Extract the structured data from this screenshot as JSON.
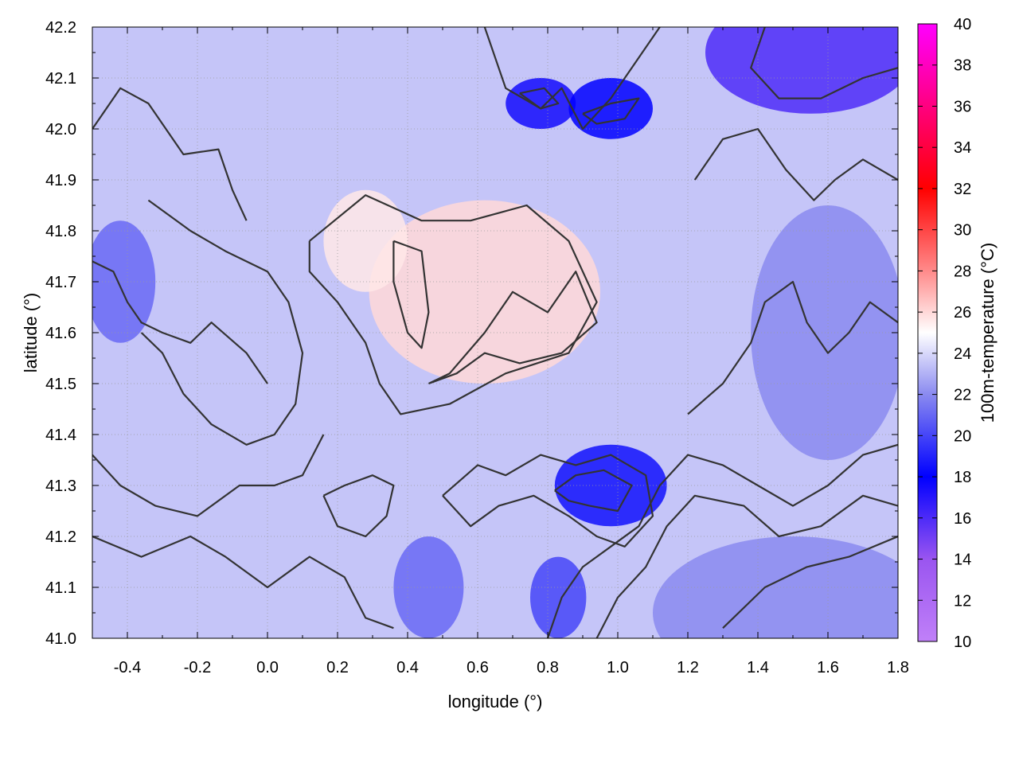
{
  "chart_data": {
    "type": "heatmap",
    "title": "",
    "xlabel": "longitude (°)",
    "ylabel": "latitude (°)",
    "colorbar_label": "100m-temperature (°C)",
    "xlim": [
      -0.5,
      1.8
    ],
    "ylim": [
      41.0,
      42.2
    ],
    "x_ticks": [
      "-0.4",
      "-0.2",
      "0.0",
      "0.2",
      "0.4",
      "0.6",
      "0.8",
      "1.0",
      "1.2",
      "1.4",
      "1.6",
      "1.8"
    ],
    "y_ticks": [
      "41.0",
      "41.1",
      "41.2",
      "41.3",
      "41.4",
      "41.5",
      "41.6",
      "41.7",
      "41.8",
      "41.9",
      "42.0",
      "42.1",
      "42.2"
    ],
    "colorbar_range": [
      10,
      40
    ],
    "colorbar_ticks": [
      "10",
      "12",
      "14",
      "16",
      "18",
      "20",
      "22",
      "24",
      "26",
      "28",
      "30",
      "32",
      "34",
      "36",
      "38",
      "40"
    ],
    "colormap": [
      {
        "value": 10,
        "color": "#c080f8"
      },
      {
        "value": 14,
        "color": "#9a55f0"
      },
      {
        "value": 18,
        "color": "#0000ff"
      },
      {
        "value": 22,
        "color": "#8a8af0"
      },
      {
        "value": 25,
        "color": "#ffffff"
      },
      {
        "value": 28,
        "color": "#ff8a8a"
      },
      {
        "value": 32,
        "color": "#ff0000"
      },
      {
        "value": 40,
        "color": "#ff00ff"
      }
    ],
    "contour_color": "#333333",
    "grid": true,
    "grid_style": "dotted",
    "regions": [
      {
        "name": "warm-center",
        "cx": 0.62,
        "cy": 41.68,
        "rx": 0.33,
        "ry": 0.18,
        "value": 26.0
      },
      {
        "name": "warm-west-center",
        "cx": 0.28,
        "cy": 41.78,
        "rx": 0.12,
        "ry": 0.1,
        "value": 25.6
      },
      {
        "name": "cold-northeast-corner",
        "cx": 1.55,
        "cy": 42.15,
        "rx": 0.3,
        "ry": 0.12,
        "value": 16.0
      },
      {
        "name": "cold-north-1",
        "cx": 0.78,
        "cy": 42.05,
        "rx": 0.1,
        "ry": 0.05,
        "value": 17.5
      },
      {
        "name": "cold-north-2",
        "cx": 0.98,
        "cy": 42.04,
        "rx": 0.12,
        "ry": 0.06,
        "value": 18.0
      },
      {
        "name": "cold-southeast-1",
        "cx": 0.98,
        "cy": 41.3,
        "rx": 0.16,
        "ry": 0.08,
        "value": 18.5
      },
      {
        "name": "cold-southeast-2",
        "cx": 0.83,
        "cy": 41.08,
        "rx": 0.08,
        "ry": 0.08,
        "value": 20.0
      },
      {
        "name": "cool-west",
        "cx": -0.42,
        "cy": 41.7,
        "rx": 0.1,
        "ry": 0.12,
        "value": 21.0
      },
      {
        "name": "cool-south-center",
        "cx": 0.46,
        "cy": 41.1,
        "rx": 0.1,
        "ry": 0.1,
        "value": 21.0
      },
      {
        "name": "cool-east",
        "cx": 1.6,
        "cy": 41.6,
        "rx": 0.22,
        "ry": 0.25,
        "value": 22.0
      },
      {
        "name": "flat-southeast",
        "cx": 1.5,
        "cy": 41.05,
        "rx": 0.4,
        "ry": 0.15,
        "value": 22.0
      }
    ],
    "contours": [
      [
        [
          0.12,
          41.78
        ],
        [
          0.28,
          41.87
        ],
        [
          0.44,
          41.82
        ],
        [
          0.58,
          41.82
        ],
        [
          0.74,
          41.85
        ],
        [
          0.86,
          41.78
        ],
        [
          0.94,
          41.66
        ],
        [
          0.86,
          41.56
        ],
        [
          0.68,
          41.52
        ],
        [
          0.52,
          41.46
        ],
        [
          0.38,
          41.44
        ],
        [
          0.32,
          41.5
        ],
        [
          0.28,
          41.58
        ],
        [
          0.2,
          41.66
        ],
        [
          0.12,
          41.72
        ],
        [
          0.12,
          41.78
        ]
      ],
      [
        [
          0.36,
          41.78
        ],
        [
          0.44,
          41.76
        ],
        [
          0.46,
          41.64
        ],
        [
          0.44,
          41.57
        ],
        [
          0.4,
          41.6
        ],
        [
          0.36,
          41.7
        ],
        [
          0.36,
          41.78
        ]
      ],
      [
        [
          0.46,
          41.5
        ],
        [
          0.52,
          41.52
        ],
        [
          0.62,
          41.6
        ],
        [
          0.7,
          41.68
        ],
        [
          0.8,
          41.64
        ],
        [
          0.88,
          41.72
        ],
        [
          0.94,
          41.62
        ],
        [
          0.84,
          41.56
        ],
        [
          0.72,
          41.54
        ],
        [
          0.62,
          41.56
        ],
        [
          0.54,
          41.52
        ],
        [
          0.46,
          41.5
        ]
      ],
      [
        [
          0.62,
          42.2
        ],
        [
          0.68,
          42.08
        ],
        [
          0.78,
          42.04
        ],
        [
          0.84,
          42.08
        ],
        [
          0.9,
          42.0
        ],
        [
          0.98,
          42.06
        ],
        [
          1.04,
          42.12
        ],
        [
          1.12,
          42.2
        ]
      ],
      [
        [
          0.72,
          42.07
        ],
        [
          0.78,
          42.04
        ],
        [
          0.83,
          42.05
        ],
        [
          0.79,
          42.08
        ],
        [
          0.72,
          42.07
        ]
      ],
      [
        [
          0.9,
          42.03
        ],
        [
          0.98,
          42.05
        ],
        [
          1.06,
          42.06
        ],
        [
          1.02,
          42.02
        ],
        [
          0.94,
          42.01
        ],
        [
          0.9,
          42.03
        ]
      ],
      [
        [
          1.42,
          42.2
        ],
        [
          1.38,
          42.12
        ],
        [
          1.46,
          42.06
        ],
        [
          1.58,
          42.06
        ],
        [
          1.7,
          42.1
        ],
        [
          1.8,
          42.12
        ]
      ],
      [
        [
          -0.5,
          42.0
        ],
        [
          -0.42,
          42.08
        ],
        [
          -0.34,
          42.05
        ],
        [
          -0.24,
          41.95
        ],
        [
          -0.14,
          41.96
        ],
        [
          -0.1,
          41.88
        ],
        [
          -0.06,
          41.82
        ]
      ],
      [
        [
          -0.5,
          41.74
        ],
        [
          -0.44,
          41.72
        ],
        [
          -0.4,
          41.66
        ],
        [
          -0.36,
          41.62
        ],
        [
          -0.3,
          41.6
        ],
        [
          -0.22,
          41.58
        ],
        [
          -0.16,
          41.62
        ],
        [
          -0.06,
          41.56
        ],
        [
          0.0,
          41.5
        ]
      ],
      [
        [
          -0.5,
          41.36
        ],
        [
          -0.42,
          41.3
        ],
        [
          -0.32,
          41.26
        ],
        [
          -0.2,
          41.24
        ],
        [
          -0.08,
          41.3
        ],
        [
          0.02,
          41.3
        ],
        [
          0.1,
          41.32
        ],
        [
          0.16,
          41.4
        ]
      ],
      [
        [
          -0.5,
          41.2
        ],
        [
          -0.36,
          41.16
        ],
        [
          -0.22,
          41.2
        ],
        [
          -0.12,
          41.16
        ],
        [
          0.0,
          41.1
        ],
        [
          0.12,
          41.16
        ],
        [
          0.22,
          41.12
        ],
        [
          0.28,
          41.04
        ],
        [
          0.36,
          41.02
        ]
      ],
      [
        [
          0.5,
          41.28
        ],
        [
          0.6,
          41.34
        ],
        [
          0.68,
          41.32
        ],
        [
          0.78,
          41.36
        ],
        [
          0.88,
          41.34
        ],
        [
          0.98,
          41.36
        ],
        [
          1.08,
          41.32
        ],
        [
          1.1,
          41.24
        ],
        [
          1.02,
          41.18
        ],
        [
          0.94,
          41.2
        ],
        [
          0.86,
          41.24
        ],
        [
          0.76,
          41.28
        ],
        [
          0.66,
          41.26
        ],
        [
          0.58,
          41.22
        ],
        [
          0.5,
          41.28
        ]
      ],
      [
        [
          0.82,
          41.29
        ],
        [
          0.88,
          41.32
        ],
        [
          0.96,
          41.33
        ],
        [
          1.04,
          41.3
        ],
        [
          1.0,
          41.25
        ],
        [
          0.92,
          41.26
        ],
        [
          0.86,
          41.27
        ],
        [
          0.82,
          41.29
        ]
      ],
      [
        [
          0.8,
          41.0
        ],
        [
          0.84,
          41.08
        ],
        [
          0.9,
          41.14
        ],
        [
          0.98,
          41.18
        ],
        [
          1.06,
          41.22
        ],
        [
          1.12,
          41.3
        ],
        [
          1.2,
          41.36
        ],
        [
          1.3,
          41.34
        ],
        [
          1.4,
          41.3
        ],
        [
          1.5,
          41.26
        ],
        [
          1.6,
          41.3
        ],
        [
          1.7,
          41.36
        ],
        [
          1.8,
          41.38
        ]
      ],
      [
        [
          0.94,
          41.0
        ],
        [
          1.0,
          41.08
        ],
        [
          1.08,
          41.14
        ],
        [
          1.14,
          41.22
        ],
        [
          1.22,
          41.28
        ],
        [
          1.36,
          41.26
        ],
        [
          1.46,
          41.2
        ],
        [
          1.58,
          41.22
        ],
        [
          1.7,
          41.28
        ],
        [
          1.8,
          41.26
        ]
      ],
      [
        [
          1.2,
          41.44
        ],
        [
          1.3,
          41.5
        ],
        [
          1.38,
          41.58
        ],
        [
          1.42,
          41.66
        ],
        [
          1.5,
          41.7
        ],
        [
          1.54,
          41.62
        ],
        [
          1.6,
          41.56
        ],
        [
          1.66,
          41.6
        ],
        [
          1.72,
          41.66
        ],
        [
          1.8,
          41.62
        ]
      ],
      [
        [
          1.22,
          41.9
        ],
        [
          1.3,
          41.98
        ],
        [
          1.4,
          42.0
        ],
        [
          1.48,
          41.92
        ],
        [
          1.56,
          41.86
        ],
        [
          1.62,
          41.9
        ],
        [
          1.7,
          41.94
        ],
        [
          1.8,
          41.9
        ]
      ],
      [
        [
          1.3,
          41.02
        ],
        [
          1.42,
          41.1
        ],
        [
          1.54,
          41.14
        ],
        [
          1.66,
          41.16
        ],
        [
          1.8,
          41.2
        ]
      ],
      [
        [
          -0.34,
          41.86
        ],
        [
          -0.22,
          41.8
        ],
        [
          -0.12,
          41.76
        ],
        [
          0.0,
          41.72
        ],
        [
          0.06,
          41.66
        ],
        [
          0.1,
          41.56
        ],
        [
          0.08,
          41.46
        ],
        [
          0.02,
          41.4
        ],
        [
          -0.06,
          41.38
        ],
        [
          -0.16,
          41.42
        ],
        [
          -0.24,
          41.48
        ],
        [
          -0.3,
          41.56
        ],
        [
          -0.36,
          41.6
        ]
      ],
      [
        [
          0.16,
          41.28
        ],
        [
          0.2,
          41.22
        ],
        [
          0.28,
          41.2
        ],
        [
          0.34,
          41.24
        ],
        [
          0.36,
          41.3
        ],
        [
          0.3,
          41.32
        ],
        [
          0.22,
          41.3
        ],
        [
          0.16,
          41.28
        ]
      ]
    ]
  }
}
